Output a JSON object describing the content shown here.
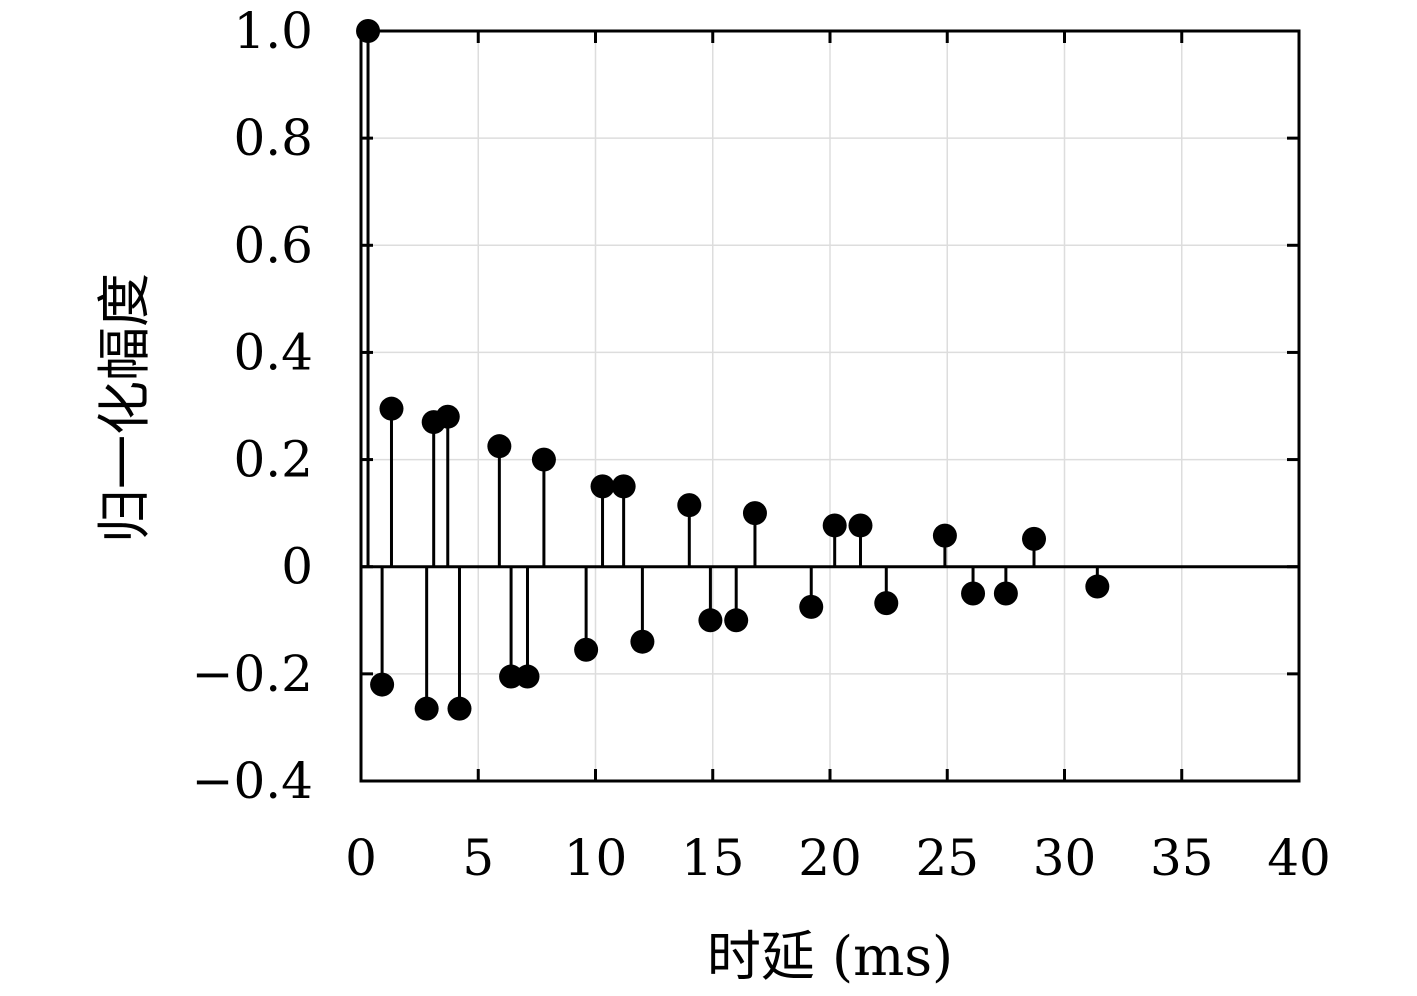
{
  "chart_data": {
    "type": "stem",
    "xlabel": "时延 (ms)",
    "ylabel": "归一化幅度",
    "xlim": [
      0,
      40
    ],
    "ylim": [
      -0.4,
      1.0
    ],
    "x_ticks": [
      "0",
      "5",
      "10",
      "15",
      "20",
      "25",
      "30",
      "35",
      "40"
    ],
    "y_ticks": [
      "−0.4",
      "−0.2",
      "0",
      "0.2",
      "0.4",
      "0.6",
      "0.8",
      "1.0"
    ],
    "grid": true,
    "x": [
      0.3,
      0.9,
      1.3,
      2.8,
      3.1,
      3.7,
      4.2,
      5.9,
      6.4,
      7.1,
      7.8,
      9.6,
      10.3,
      11.2,
      12.0,
      14.0,
      14.9,
      16.0,
      16.8,
      19.2,
      20.2,
      21.3,
      22.4,
      24.9,
      26.1,
      27.5,
      28.7,
      31.4
    ],
    "y": [
      1.0,
      -0.22,
      0.295,
      -0.265,
      0.27,
      0.28,
      -0.265,
      0.225,
      -0.205,
      -0.205,
      0.2,
      -0.155,
      0.15,
      0.15,
      -0.14,
      0.115,
      -0.1,
      -0.1,
      0.1,
      -0.075,
      0.077,
      0.077,
      -0.068,
      0.058,
      -0.05,
      -0.05,
      0.052,
      -0.037
    ],
    "colors": {
      "stem": "#000000",
      "grid": "#dddddd",
      "axis": "#000000"
    }
  }
}
